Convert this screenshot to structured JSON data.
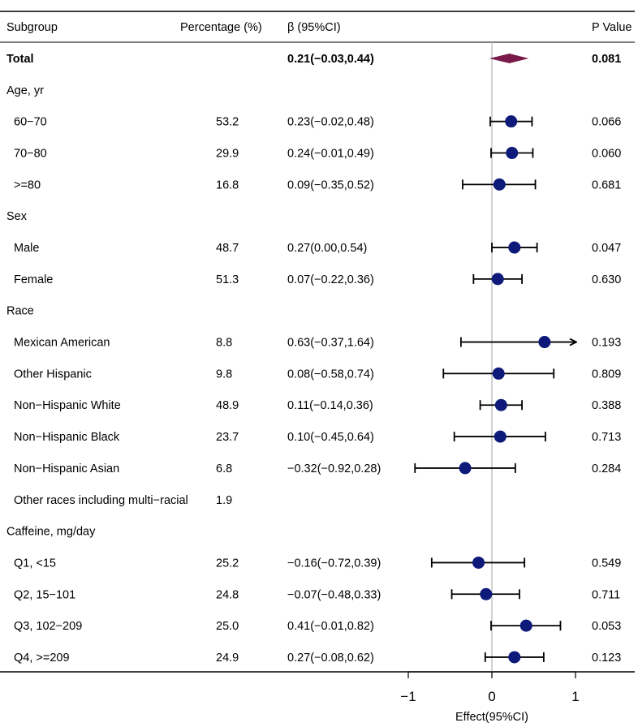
{
  "headers": {
    "subgroup": "Subgroup",
    "percentage": "Percentage (%)",
    "beta": "β (95%CI)",
    "pvalue": "P Value"
  },
  "colors": {
    "point": "#0d1a7a",
    "diamond": "#7a1a4a",
    "refline": "#b3b3b3"
  },
  "chart_data": {
    "type": "forest",
    "xlabel": "Effect(95%CI)",
    "xlim": [
      -1.9,
      1.9
    ],
    "xticks": [
      -1,
      0,
      1
    ],
    "reference_line": 0,
    "rows": [
      {
        "label": "Total",
        "kind": "total",
        "pct": "",
        "ci_text": "0.21(−0.03,0.44)",
        "p": "0.081",
        "est": 0.21,
        "lo": -0.03,
        "hi": 0.44
      },
      {
        "label": "Age, yr",
        "kind": "group",
        "pct": "",
        "ci_text": "",
        "p": ""
      },
      {
        "label": "60−70",
        "kind": "item",
        "pct": "53.2",
        "ci_text": "0.23(−0.02,0.48)",
        "p": "0.066",
        "est": 0.23,
        "lo": -0.02,
        "hi": 0.48
      },
      {
        "label": "70−80",
        "kind": "item",
        "pct": "29.9",
        "ci_text": "0.24(−0.01,0.49)",
        "p": "0.060",
        "est": 0.24,
        "lo": -0.01,
        "hi": 0.49
      },
      {
        "label": ">=80",
        "kind": "item",
        "pct": "16.8",
        "ci_text": "0.09(−0.35,0.52)",
        "p": "0.681",
        "est": 0.09,
        "lo": -0.35,
        "hi": 0.52
      },
      {
        "label": "Sex",
        "kind": "group",
        "pct": "",
        "ci_text": "",
        "p": ""
      },
      {
        "label": "Male",
        "kind": "item",
        "pct": "48.7",
        "ci_text": "0.27(0.00,0.54)",
        "p": "0.047",
        "est": 0.27,
        "lo": 0.0,
        "hi": 0.54
      },
      {
        "label": "Female",
        "kind": "item",
        "pct": "51.3",
        "ci_text": "0.07(−0.22,0.36)",
        "p": "0.630",
        "est": 0.07,
        "lo": -0.22,
        "hi": 0.36
      },
      {
        "label": "Race",
        "kind": "group",
        "pct": "",
        "ci_text": "",
        "p": ""
      },
      {
        "label": "Mexican American",
        "kind": "item",
        "pct": "8.8",
        "ci_text": "0.63(−0.37,1.64)",
        "p": "0.193",
        "est": 0.63,
        "lo": -0.37,
        "hi": 1.64
      },
      {
        "label": "Other Hispanic",
        "kind": "item",
        "pct": "9.8",
        "ci_text": "0.08(−0.58,0.74)",
        "p": "0.809",
        "est": 0.08,
        "lo": -0.58,
        "hi": 0.74
      },
      {
        "label": "Non−Hispanic White",
        "kind": "item",
        "pct": "48.9",
        "ci_text": "0.11(−0.14,0.36)",
        "p": "0.388",
        "est": 0.11,
        "lo": -0.14,
        "hi": 0.36
      },
      {
        "label": "Non−Hispanic Black",
        "kind": "item",
        "pct": "23.7",
        "ci_text": "0.10(−0.45,0.64)",
        "p": "0.713",
        "est": 0.1,
        "lo": -0.45,
        "hi": 0.64
      },
      {
        "label": "Non−Hispanic Asian",
        "kind": "item",
        "pct": "6.8",
        "ci_text": "−0.32(−0.92,0.28)",
        "p": "0.284",
        "est": -0.32,
        "lo": -0.92,
        "hi": 0.28
      },
      {
        "label": "Other races including multi−racial",
        "kind": "item",
        "pct": "1.9",
        "ci_text": "",
        "p": ""
      },
      {
        "label": "Caffeine, mg/day",
        "kind": "group",
        "pct": "",
        "ci_text": "",
        "p": ""
      },
      {
        "label": "Q1, <15",
        "kind": "item",
        "pct": "25.2",
        "ci_text": "−0.16(−0.72,0.39)",
        "p": "0.549",
        "est": -0.16,
        "lo": -0.72,
        "hi": 0.39
      },
      {
        "label": "Q2, 15−101",
        "kind": "item",
        "pct": "24.8",
        "ci_text": "−0.07(−0.48,0.33)",
        "p": "0.711",
        "est": -0.07,
        "lo": -0.48,
        "hi": 0.33
      },
      {
        "label": "Q3, 102−209",
        "kind": "item",
        "pct": "25.0",
        "ci_text": "0.41(−0.01,0.82)",
        "p": "0.053",
        "est": 0.41,
        "lo": -0.01,
        "hi": 0.82
      },
      {
        "label": "Q4, >=209",
        "kind": "item",
        "pct": "24.9",
        "ci_text": "0.27(−0.08,0.62)",
        "p": "0.123",
        "est": 0.27,
        "lo": -0.08,
        "hi": 0.62
      }
    ]
  }
}
